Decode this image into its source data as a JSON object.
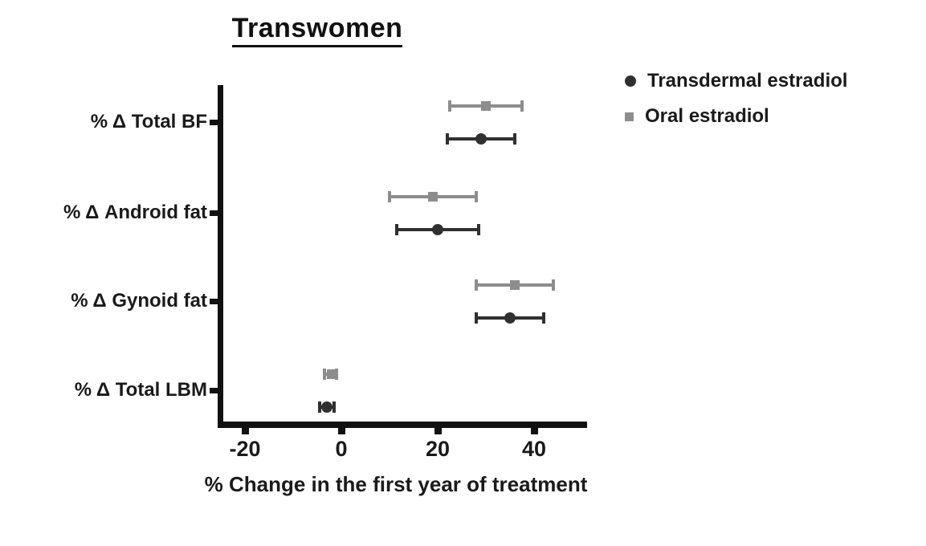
{
  "figure": {
    "background": "#ffffff",
    "axis_color": "#111111",
    "text_color": "#1a1a1a"
  },
  "chart_data": {
    "type": "scatter",
    "variant": "horizontal-dot-plot-with-error-bars",
    "title": "Transwomen",
    "xlabel": "% Change in the first year of treatment",
    "ylabel": "",
    "categories": [
      "% Δ Total BF",
      "% Δ Android fat",
      "% Δ Gynoid fat",
      "% Δ Total LBM"
    ],
    "xlim": [
      -25.5,
      51
    ],
    "xticks": [
      -20,
      0,
      20,
      40
    ],
    "xtick_labels": [
      "-20",
      "0",
      "20",
      "40"
    ],
    "grid": false,
    "legend_position": "top-right",
    "series": [
      {
        "name": "Transdermal estradiol",
        "marker": "circle",
        "color": "#303030",
        "values": [
          29,
          20,
          35,
          -3
        ],
        "ci_low": [
          22,
          11.5,
          28,
          -4.5
        ],
        "ci_high": [
          36,
          28.5,
          42,
          -1.5
        ]
      },
      {
        "name": "Oral estradiol",
        "marker": "square",
        "color": "#8d8d8d",
        "values": [
          30,
          19,
          36,
          -2
        ],
        "ci_low": [
          22.5,
          10,
          28,
          -3.5
        ],
        "ci_high": [
          37.5,
          28,
          44,
          -1
        ]
      }
    ]
  }
}
